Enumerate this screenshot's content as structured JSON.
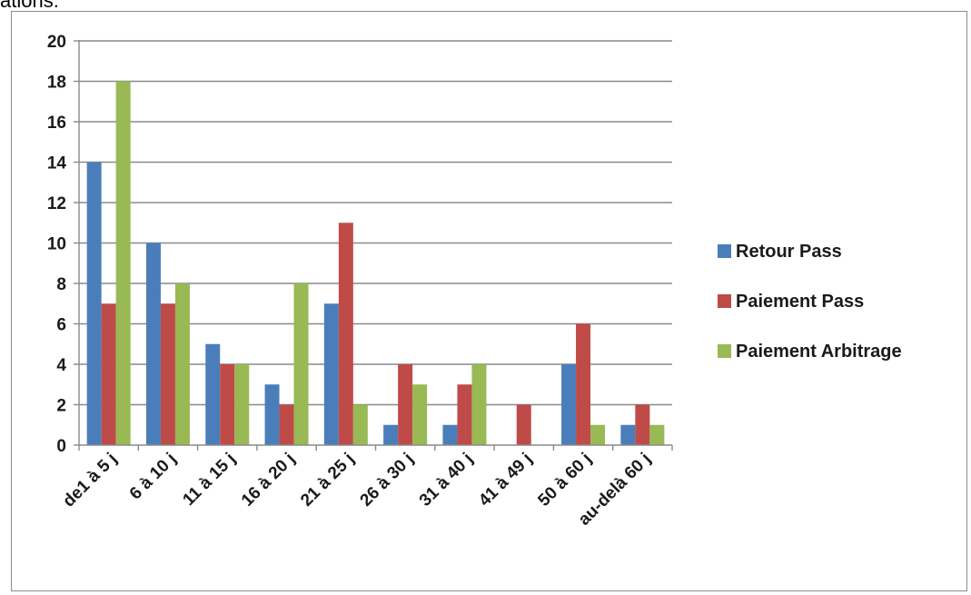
{
  "page": {
    "top_fragment": "ations."
  },
  "chart_data": {
    "type": "bar",
    "title": "",
    "xlabel": "",
    "ylabel": "",
    "ylim": [
      0,
      20
    ],
    "yticks": [
      0,
      2,
      4,
      6,
      8,
      10,
      12,
      14,
      16,
      18,
      20
    ],
    "grid": true,
    "legend_position": "right",
    "categories": [
      "de1 à 5 j",
      "6 à 10 j",
      "11 à 15 j",
      "16 à 20 j",
      "21 à 25 j",
      "26 à 30 j",
      "31 à 40 j",
      "41 à 49 j",
      "50 à 60 j",
      "au-delà 60 j"
    ],
    "series": [
      {
        "name": "Retour Pass",
        "color": "#4a7ebb",
        "values": [
          14,
          10,
          5,
          3,
          7,
          1,
          1,
          0,
          4,
          1
        ]
      },
      {
        "name": "Paiement Pass",
        "color": "#be4b48",
        "values": [
          7,
          7,
          4,
          2,
          11,
          4,
          3,
          2,
          6,
          2
        ]
      },
      {
        "name": "Paiement Arbitrage",
        "color": "#98b954",
        "values": [
          18,
          8,
          4,
          8,
          2,
          3,
          4,
          0,
          1,
          1
        ]
      }
    ]
  }
}
